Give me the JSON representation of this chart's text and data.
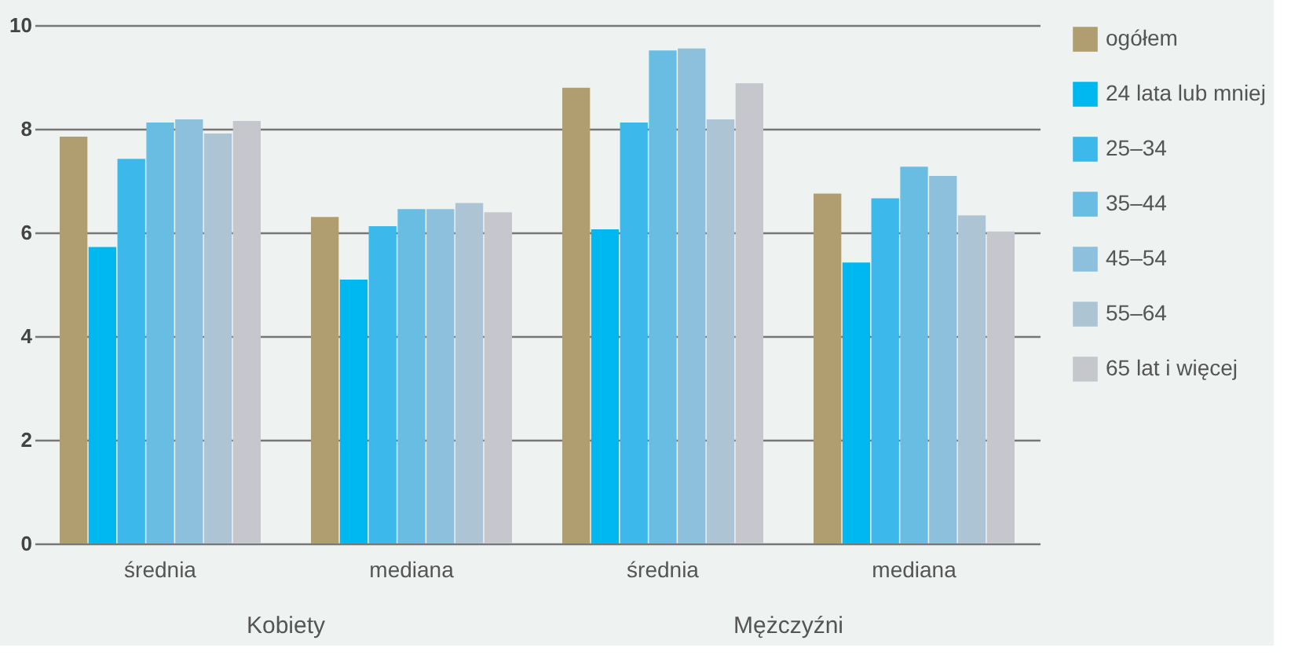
{
  "chart_data": {
    "type": "bar",
    "categories": [
      "średnia",
      "mediana",
      "średnia",
      "mediana"
    ],
    "series": [
      {
        "name": "ogółem",
        "color": "#b09e70",
        "values": [
          7.85,
          6.3,
          8.79,
          6.75
        ]
      },
      {
        "name": "24 lata lub mniej",
        "color": "#00b8f0",
        "values": [
          5.72,
          5.09,
          6.06,
          5.42
        ]
      },
      {
        "name": "25–34",
        "color": "#3cb9ea",
        "values": [
          7.42,
          6.12,
          8.12,
          6.66
        ]
      },
      {
        "name": "35–44",
        "color": "#6abde2",
        "values": [
          8.12,
          6.45,
          9.51,
          7.27
        ]
      },
      {
        "name": "45–54",
        "color": "#8dc0dd",
        "values": [
          8.18,
          6.45,
          9.55,
          7.09
        ]
      },
      {
        "name": "55–64",
        "color": "#adc4d5",
        "values": [
          7.91,
          6.57,
          8.18,
          6.33
        ]
      },
      {
        "name": "65 lat i więcej",
        "color": "#c5c7cc",
        "values": [
          8.15,
          6.39,
          8.88,
          6.02
        ]
      }
    ],
    "annotations": [
      "Kobiety",
      "Mężczyźni"
    ],
    "ylim": [
      0,
      10
    ],
    "yticks": [
      0,
      2,
      4,
      6,
      8,
      10
    ],
    "grid": "y",
    "legend": "right"
  }
}
